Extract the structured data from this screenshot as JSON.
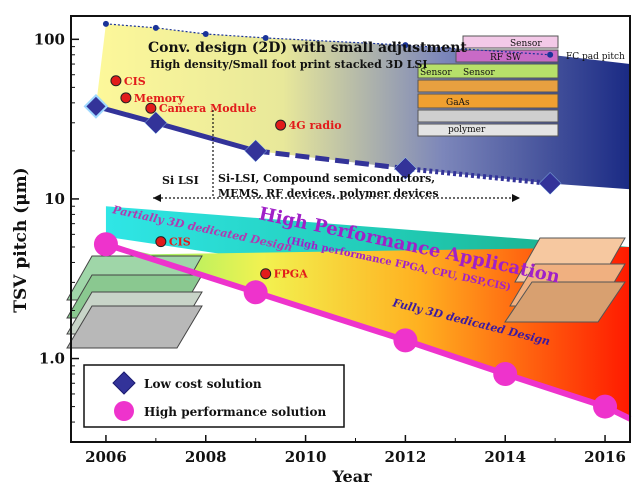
{
  "chart_data": {
    "type": "line",
    "title": "",
    "xlabel": "Year",
    "ylabel": "TSV pitch  (μm)",
    "x_scale": "linear",
    "y_scale": "log",
    "xlim": [
      2005.3,
      2016.5
    ],
    "ylim": [
      0.3,
      140
    ],
    "x_ticks": [
      2006,
      2008,
      2010,
      2012,
      2014,
      2016
    ],
    "x_tick_labels": [
      "2006",
      "2008",
      "2010",
      "2012",
      "2014",
      "2016"
    ],
    "y_ticks": [
      1,
      10,
      100
    ],
    "y_tick_labels": [
      "1.0",
      "10",
      "100"
    ],
    "series": [
      {
        "name": "Low cost solution",
        "color": "#333399",
        "marker": "diamond",
        "x": [
          2005.8,
          2007,
          2009,
          2012,
          2014.9
        ],
        "y": [
          38,
          30,
          20,
          15.5,
          12.5
        ]
      },
      {
        "name": "High performance solution",
        "color": "#ee33cc",
        "marker": "circle",
        "x": [
          2006,
          2009,
          2012,
          2014,
          2016
        ],
        "y": [
          5.2,
          2.6,
          1.3,
          0.8,
          0.5
        ]
      }
    ],
    "upper_boundary": {
      "color": "#1a3399",
      "x": [
        2006,
        2007,
        2008,
        2009.2,
        2012,
        2014.9
      ],
      "y": [
        125,
        118,
        108,
        102,
        92,
        80
      ]
    },
    "annotations": {
      "conv_title": "Conv. design (2D) with small adjustment",
      "conv_sub": "High density/Small foot print stacked 3D LSI",
      "fc_pitch": "FC pad pitch",
      "si_lsi": "Si LSI",
      "si_lsi_long_1": "Si-LSI, Compound semiconductors,",
      "si_lsi_long_2": "MEMS, RF devices, polymer devices",
      "partial": "Partially 3D dedicated Design",
      "high_perf": "High Performance Application",
      "high_perf_sub": "(High performance FPGA, CPU, DSP,CIS)",
      "fully": "Fully 3D dedicated Design",
      "stack_labels": [
        "Sensor",
        "RF SW",
        "Sensor",
        "Sensor",
        "GaAs",
        "polymer"
      ]
    },
    "points": [
      {
        "label": "CIS",
        "x": 2006.2,
        "y": 55
      },
      {
        "label": "Memory",
        "x": 2006.4,
        "y": 43
      },
      {
        "label": "Camera Module",
        "x": 2006.9,
        "y": 37
      },
      {
        "label": "4G radio",
        "x": 2009.5,
        "y": 29
      },
      {
        "label": "CIS",
        "x": 2007.1,
        "y": 5.4
      },
      {
        "label": "FPGA",
        "x": 2009.2,
        "y": 3.4
      }
    ],
    "grid": false,
    "legend_position": "bottom-left"
  },
  "colors": {
    "point_fill": "#e21b1b",
    "point_text": "#e21b1b",
    "high_perf_text": "#a020c8",
    "partial_text": "#b03ab0",
    "fully_text": "#3b1aa0"
  }
}
